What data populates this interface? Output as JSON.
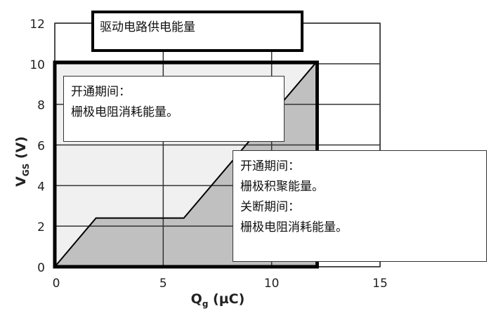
{
  "chart_data": {
    "type": "area",
    "xlabel": "Q",
    "xlabel_sub": "g",
    "xlabel_unit": " (µC)",
    "ylabel": "V",
    "ylabel_sub": "GS",
    "ylabel_unit": " (V)",
    "xlim": [
      0,
      15
    ],
    "ylim": [
      0,
      12
    ],
    "xticks": [
      0,
      5,
      10,
      15
    ],
    "yticks": [
      0,
      2,
      4,
      6,
      8,
      10,
      12
    ],
    "grid": true,
    "series": [
      {
        "x": [
          0,
          1.9,
          5.95,
          12
        ],
        "y": [
          0,
          2.4,
          2.4,
          10
        ]
      }
    ],
    "energy_box": {
      "x": [
        0,
        12
      ],
      "y": [
        0,
        10
      ]
    },
    "colors": {
      "under_curve": "#c0c0c0",
      "above_curve": "#f0f0f0",
      "line": "#000000"
    },
    "annotations": [
      {
        "lines": [
          "驱动电路供电能量"
        ]
      },
      {
        "lines": [
          "开通期间：",
          "栅极电阻消耗能量。"
        ]
      },
      {
        "lines": [
          "开通期间：",
          "栅极积聚能量。",
          "关断期间：",
          "栅极电阻消耗能量。"
        ]
      }
    ]
  }
}
